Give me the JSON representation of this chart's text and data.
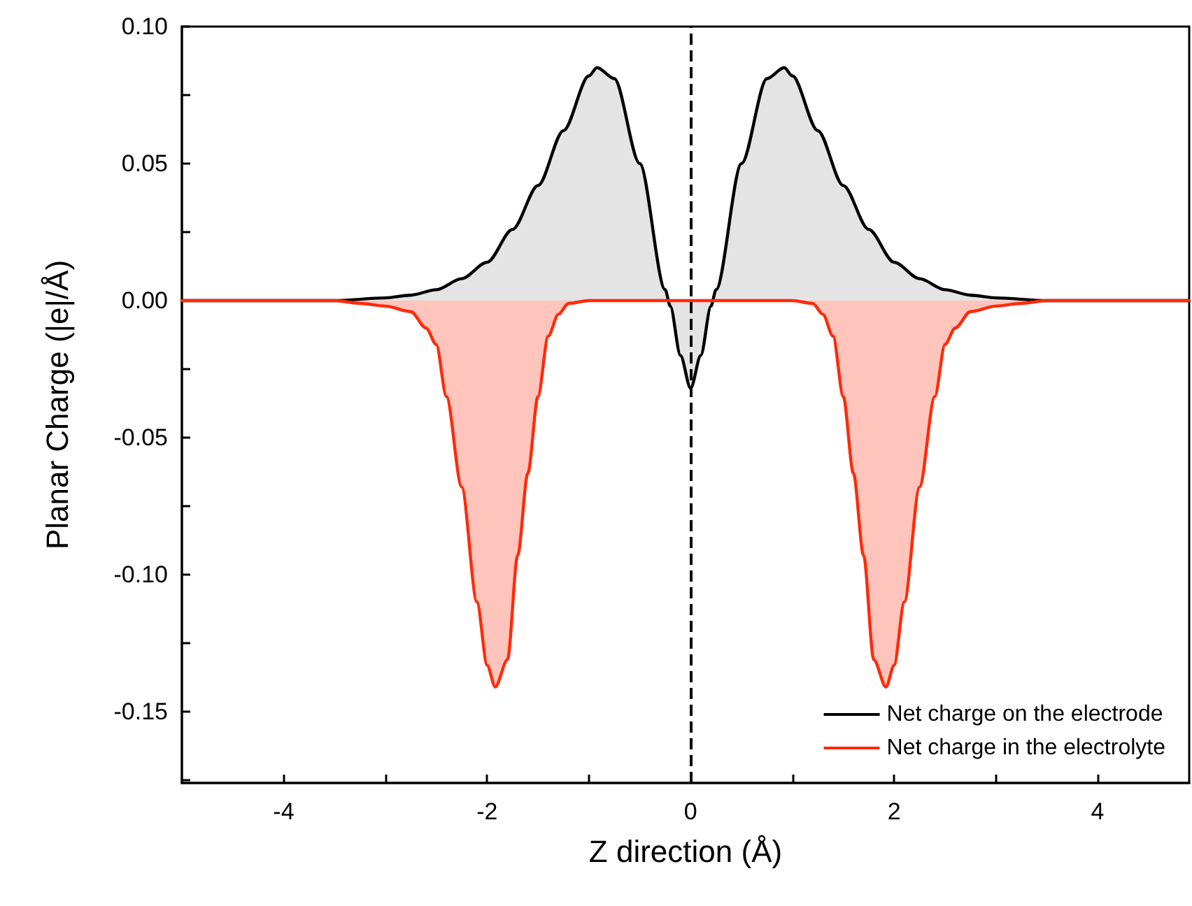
{
  "chart_data": {
    "type": "area",
    "xlabel": "Z direction (Å)",
    "ylabel": "Planar Charge (|e|/Å)",
    "xlim": [
      -5,
      4.9
    ],
    "ylim": [
      -0.176,
      0.1
    ],
    "xticks": [
      -4,
      {
        "value": -3,
        "label": null
      },
      -2,
      {
        "value": -1,
        "label": null
      },
      0,
      {
        "value": 1,
        "label": null
      },
      2,
      {
        "value": 3,
        "label": null
      },
      4
    ],
    "yticks": [
      {
        "value": 0.1,
        "label": "0.10"
      },
      {
        "value": 0.075,
        "label": null
      },
      0.05,
      {
        "value": 0.025,
        "label": null
      },
      {
        "value": 0,
        "label": "0.00"
      },
      {
        "value": -0.025,
        "label": null
      },
      -0.05,
      {
        "value": -0.075,
        "label": null
      },
      {
        "value": -0.1,
        "label": "-0.10"
      },
      {
        "value": -0.125,
        "label": null
      },
      -0.15,
      {
        "value": -0.175,
        "label": null
      }
    ],
    "grid": false,
    "legend": "bottom right",
    "marker": "none",
    "line_style": "solid",
    "ref_lines": [
      {
        "axis": "x",
        "value": 0,
        "color": "#000000",
        "line_style": "dashed"
      }
    ],
    "series": [
      {
        "name": "Net charge on the electrode",
        "color": "#000000",
        "x": [
          -5,
          -4,
          -3.5,
          -3,
          -2.75,
          -2.5,
          -2.25,
          -2,
          -1.75,
          -1.5,
          -1.25,
          -1,
          -0.92,
          -0.75,
          -0.5,
          -0.25,
          -0.2,
          -0.1,
          0,
          0.1,
          0.2,
          0.25,
          0.5,
          0.75,
          0.92,
          1,
          1.25,
          1.5,
          1.75,
          2,
          2.25,
          2.5,
          2.75,
          3,
          3.5,
          4,
          4.9
        ],
        "values": [
          0,
          0,
          0,
          0.001,
          0.002,
          0.004,
          0.008,
          0.014,
          0.026,
          0.042,
          0.062,
          0.082,
          0.085,
          0.081,
          0.05,
          0.004,
          -0.002,
          -0.02,
          -0.032,
          -0.02,
          -0.002,
          0.004,
          0.05,
          0.081,
          0.085,
          0.082,
          0.062,
          0.042,
          0.026,
          0.014,
          0.008,
          0.004,
          0.002,
          0.001,
          0,
          0,
          0
        ]
      },
      {
        "name": "Net charge in the electrolyte",
        "color": "#ff2a0a",
        "x": [
          -5,
          -3.5,
          -3.25,
          -3,
          -2.75,
          -2.6,
          -2.5,
          -2.4,
          -2.25,
          -2.1,
          -2,
          -1.92,
          -1.8,
          -1.7,
          -1.6,
          -1.5,
          -1.4,
          -1.3,
          -1.2,
          -1,
          0,
          1,
          1.2,
          1.3,
          1.4,
          1.5,
          1.6,
          1.7,
          1.8,
          1.92,
          2,
          2.1,
          2.25,
          2.4,
          2.5,
          2.6,
          2.75,
          3,
          3.25,
          3.5,
          4.9
        ],
        "values": [
          0,
          0,
          -0.001,
          -0.002,
          -0.004,
          -0.01,
          -0.016,
          -0.035,
          -0.068,
          -0.11,
          -0.133,
          -0.141,
          -0.131,
          -0.093,
          -0.063,
          -0.035,
          -0.013,
          -0.005,
          -0.001,
          0,
          0,
          0,
          -0.001,
          -0.005,
          -0.013,
          -0.035,
          -0.063,
          -0.093,
          -0.131,
          -0.141,
          -0.133,
          -0.11,
          -0.068,
          -0.035,
          -0.016,
          -0.01,
          -0.004,
          -0.002,
          -0.001,
          0,
          0
        ]
      }
    ]
  }
}
